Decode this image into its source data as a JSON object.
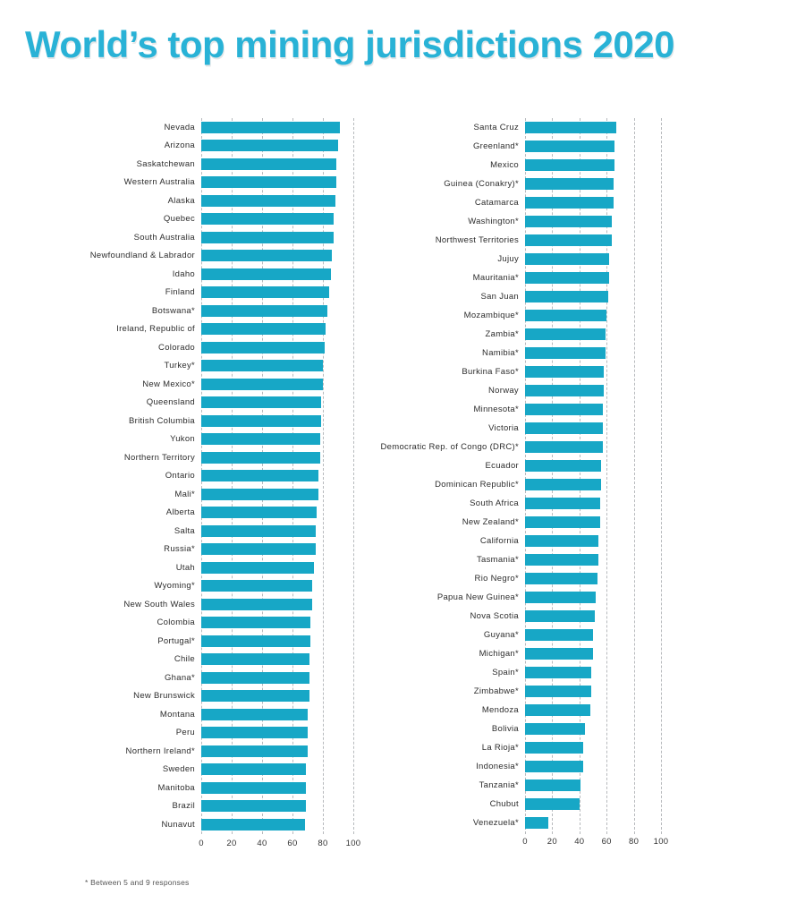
{
  "page": {
    "title": "World’s top mining jurisdictions 2020",
    "footnote": "* Between 5 and 9 responses"
  },
  "colors": {
    "title": "#29b2d6",
    "bar": "#17a7c6",
    "gridline": "#b7babd"
  },
  "chart_data": {
    "type": "bar",
    "orientation": "horizontal",
    "title": "World’s top mining jurisdictions 2020",
    "xlabel": "",
    "ylabel": "",
    "xlim": [
      0,
      100
    ],
    "x_ticks": [
      0,
      20,
      40,
      60,
      80,
      100
    ],
    "grid": "dashed-vertical",
    "legend": "none",
    "footnote": "* Between 5 and 9 responses",
    "panels": [
      {
        "name": "left",
        "categories": [
          "Nevada",
          "Arizona",
          "Saskatchewan",
          "Western Australia",
          "Alaska",
          "Quebec",
          "South Australia",
          "Newfoundland & Labrador",
          "Idaho",
          "Finland",
          "Botswana*",
          "Ireland, Republic of",
          "Colorado",
          "Turkey*",
          "New Mexico*",
          "Queensland",
          "British Columbia",
          "Yukon",
          "Northern Territory",
          "Ontario",
          "Mali*",
          "Alberta",
          "Salta",
          "Russia*",
          "Utah",
          "Wyoming*",
          "New South Wales",
          "Colombia",
          "Portugal*",
          "Chile",
          "Ghana*",
          "New Brunswick",
          "Montana",
          "Peru",
          "Northern Ireland*",
          "Sweden",
          "Manitoba",
          "Brazil",
          "Nunavut"
        ],
        "values": [
          91,
          90,
          89,
          89,
          88,
          87,
          87,
          86,
          85,
          84,
          83,
          82,
          81,
          80,
          80,
          79,
          79,
          78,
          78,
          77,
          77,
          76,
          75,
          75,
          74,
          73,
          73,
          72,
          72,
          71,
          71,
          71,
          70,
          70,
          70,
          69,
          69,
          69,
          68
        ]
      },
      {
        "name": "right",
        "categories": [
          "Santa Cruz",
          "Greenland*",
          "Mexico",
          "Guinea (Conakry)*",
          "Catamarca",
          "Washington*",
          "Northwest Territories",
          "Jujuy",
          "Mauritania*",
          "San Juan",
          "Mozambique*",
          "Zambia*",
          "Namibia*",
          "Burkina Faso*",
          "Norway",
          "Minnesota*",
          "Victoria",
          "Democratic Rep. of Congo (DRC)*",
          "Ecuador",
          "Dominican Republic*",
          "South Africa",
          "New Zealand*",
          "California",
          "Tasmania*",
          "Rio Negro*",
          "Papua New Guinea*",
          "Nova Scotia",
          "Guyana*",
          "Michigan*",
          "Spain*",
          "Zimbabwe*",
          "Mendoza",
          "Bolivia",
          "La Rioja*",
          "Indonesia*",
          "Tanzania*",
          "Chubut",
          "Venezuela*"
        ],
        "values": [
          67,
          66,
          66,
          65,
          65,
          64,
          64,
          62,
          62,
          61,
          60,
          59,
          59,
          58,
          58,
          57,
          57,
          57,
          56,
          56,
          55,
          55,
          54,
          54,
          53,
          52,
          51,
          50,
          50,
          49,
          49,
          48,
          44,
          43,
          43,
          41,
          40,
          17
        ]
      }
    ]
  }
}
